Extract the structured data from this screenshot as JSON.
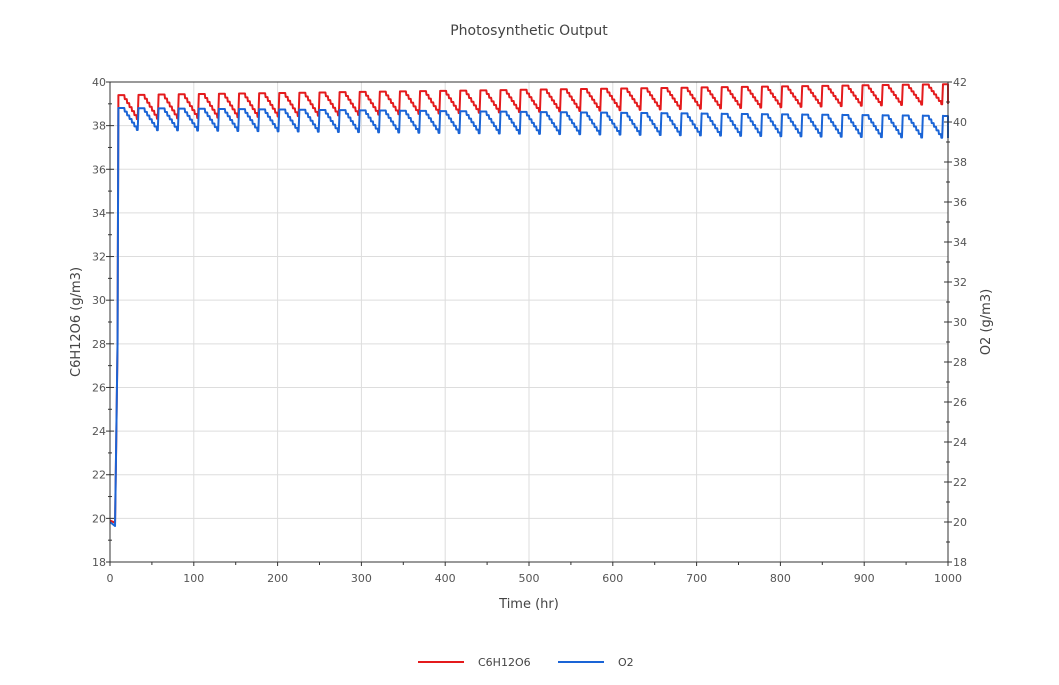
{
  "chart_data": {
    "type": "line",
    "title": "Photosynthetic Output",
    "xlabel": "Time (hr)",
    "ylabel_left": "C6H12O6 (g/m3)",
    "ylabel_right": "O2 (g/m3)",
    "xlim": [
      0,
      1000
    ],
    "ylim_left": [
      18,
      40
    ],
    "ylim_right": [
      18,
      42
    ],
    "xticks": [
      "0",
      "100",
      "200",
      "300",
      "400",
      "500",
      "600",
      "700",
      "800",
      "900",
      "1000"
    ],
    "yticks_left": [
      "18",
      "20",
      "22",
      "24",
      "26",
      "28",
      "30",
      "32",
      "34",
      "36",
      "38",
      "40"
    ],
    "yticks_right": [
      "18",
      "20",
      "22",
      "24",
      "26",
      "28",
      "30",
      "32",
      "34",
      "36",
      "38",
      "40",
      "42"
    ],
    "grid": true,
    "legend_position": "bottom-center",
    "series": [
      {
        "name": "C6H12O6",
        "axis": "left",
        "color": "#e41a1c",
        "start": [
          [
            0,
            19.9
          ],
          [
            6,
            19.8
          ],
          [
            7,
            22.3
          ],
          [
            9,
            28.0
          ],
          [
            10,
            39.3
          ]
        ],
        "cycle_period": 24,
        "cycle_start_x": 10,
        "cycle_end_x": 1000,
        "peak_start": 39.4,
        "peak_end": 39.9,
        "trough_start": 38.3,
        "trough_end": 39.0
      },
      {
        "name": "O2",
        "axis": "right",
        "color": "#1a64d6",
        "start": [
          [
            0,
            20.0
          ],
          [
            6,
            19.8
          ],
          [
            7,
            22.8
          ],
          [
            9,
            28.9
          ],
          [
            10,
            40.7
          ]
        ],
        "cycle_period": 24,
        "cycle_start_x": 10,
        "cycle_end_x": 1000,
        "peak_start": 40.7,
        "peak_end": 40.3,
        "trough_start": 39.6,
        "trough_end": 39.2
      }
    ]
  }
}
